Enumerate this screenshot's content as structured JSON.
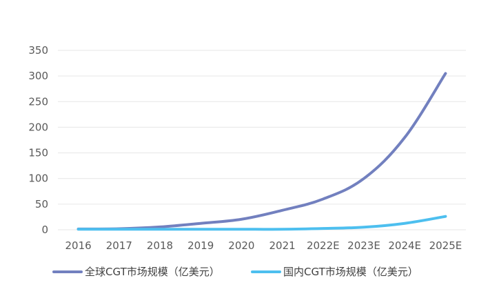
{
  "chart_data": {
    "type": "line",
    "categories": [
      "2016",
      "2017",
      "2018",
      "2019",
      "2020",
      "2021",
      "2022E",
      "2023E",
      "2024E",
      "2025E"
    ],
    "series": [
      {
        "name": "全球CGT市场规模（亿美元）",
        "color": "#7280bf",
        "values": [
          1.5,
          2.0,
          5.5,
          12.5,
          20.5,
          38.0,
          60.0,
          100.0,
          180.0,
          305.0
        ]
      },
      {
        "name": "国内CGT市场规模（亿美元）",
        "color": "#4dbfef",
        "values": [
          1.0,
          1.0,
          1.0,
          1.0,
          1.0,
          1.0,
          2.5,
          5.0,
          12.5,
          26.0
        ]
      }
    ],
    "y_ticks": [
      0,
      50,
      100,
      150,
      200,
      250,
      300,
      350
    ],
    "ylim": [
      0,
      350
    ],
    "grid": true,
    "legend_position": "bottom"
  }
}
